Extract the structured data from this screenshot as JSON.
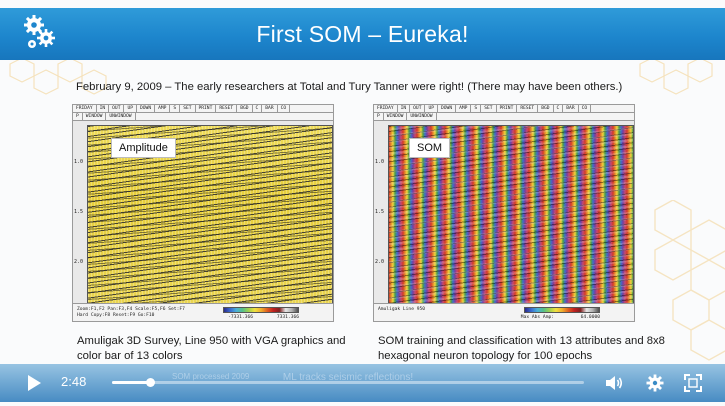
{
  "slide": {
    "title": "First SOM – Eureka!",
    "subtitle": "February 9, 2009 – The early researchers at Total and Tury Tanner were right!  (There may have been others.)",
    "panels": [
      {
        "label": "Amplitude",
        "menu_top": [
          "FRIDAY",
          "IN",
          "OUT",
          "UP",
          "DOWN",
          "AMP",
          "S",
          "SET",
          "PRINT",
          "RESET",
          "BGD",
          "C",
          "BAR",
          "CO"
        ],
        "menu_bottom": [
          "P",
          "WINDOW",
          "UNWINDOW"
        ],
        "y_ticks": [
          "1.0",
          "1.5",
          "2.0"
        ],
        "footer_text": "Zoom:F1,F2 Pan:F3,F4 Scale:F5,F6 Set:F7\nHard Copy:F8 Reset:F9 Go:F10",
        "colorbar_min": "-7331.366",
        "colorbar_max": "7331.366",
        "caption": "Amuligak 3D Survey, Line 950 with VGA graphics and color bar of 13 colors"
      },
      {
        "label": "SOM",
        "menu_top": [
          "FRIDAY",
          "IN",
          "OUT",
          "UP",
          "DOWN",
          "AMP",
          "S",
          "SET",
          "PRINT",
          "RESET",
          "BGD",
          "C",
          "BAR",
          "CO"
        ],
        "menu_bottom": [
          "P",
          "WINDOW",
          "UNWINDOW"
        ],
        "y_ticks": [
          "1.0",
          "1.5",
          "2.0"
        ],
        "footer_text": "Amuligak Line 950",
        "colorbar_min": "Max Abs Amp:",
        "colorbar_max": "64.0000",
        "caption": "SOM training and classification with 13 attributes and 8x8 hexagonal neuron topology for 100 epochs"
      }
    ]
  },
  "player": {
    "time": "2:48",
    "overlay_caption": "ML tracks seismic reflections!",
    "overlay_dim": "SOM processed 2009",
    "progress": 0.08,
    "icons": {
      "play": "play-icon",
      "volume": "volume-icon",
      "settings": "gear-icon",
      "fullscreen": "fullscreen-icon"
    },
    "colors": {
      "bar": "#2d86c4",
      "accent": "#ffffff"
    }
  },
  "theme": {
    "title_bar": "#1d86cd",
    "hex_accent": "#f0c878"
  }
}
